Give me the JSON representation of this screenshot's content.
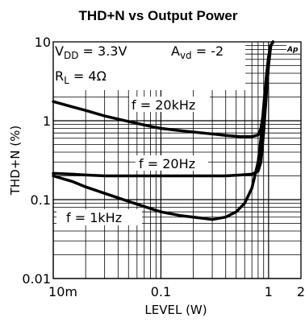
{
  "chart_data": {
    "type": "line",
    "title": "THD+N vs Output Power",
    "xlabel": "LEVEL (W)",
    "ylabel": "THD+N (%)",
    "xscale": "log",
    "yscale": "log",
    "xlim": [
      0.01,
      2
    ],
    "ylim": [
      0.01,
      10
    ],
    "grid": true,
    "xticks": [
      {
        "value": 0.01,
        "label": "10m"
      },
      {
        "value": 0.1,
        "label": "0.1"
      },
      {
        "value": 1,
        "label": "1"
      },
      {
        "value": 2,
        "label": "2"
      }
    ],
    "yticks": [
      {
        "value": 10,
        "label": "10"
      },
      {
        "value": 1,
        "label": "1"
      },
      {
        "value": 0.1,
        "label": "0.1"
      },
      {
        "value": 0.01,
        "label": "0.01"
      }
    ],
    "conditions": {
      "vdd_prefix": "V",
      "vdd_sub": "DD",
      "vdd_value": " = 3.3V",
      "avd_prefix": "A",
      "avd_sub": "vd",
      "avd_value": " = -2",
      "rl_prefix": "R",
      "rl_sub": "L",
      "rl_value": " = 4Ω"
    },
    "series": [
      {
        "name": "f = 20kHz",
        "x": [
          0.01,
          0.015,
          0.02,
          0.03,
          0.05,
          0.08,
          0.1,
          0.15,
          0.2,
          0.3,
          0.4,
          0.55,
          0.7,
          0.8,
          0.85,
          0.9,
          0.95,
          1.0,
          1.05,
          1.1
        ],
        "y": [
          1.75,
          1.5,
          1.35,
          1.15,
          0.98,
          0.85,
          0.8,
          0.75,
          0.72,
          0.68,
          0.65,
          0.63,
          0.63,
          0.66,
          0.8,
          1.3,
          2.8,
          6.0,
          9.0,
          10.0
        ]
      },
      {
        "name": "f = 20Hz",
        "x": [
          0.01,
          0.015,
          0.02,
          0.03,
          0.05,
          0.08,
          0.1,
          0.15,
          0.2,
          0.3,
          0.4,
          0.55,
          0.7,
          0.8,
          0.85,
          0.9,
          0.95,
          1.0,
          1.05,
          1.1
        ],
        "y": [
          0.215,
          0.21,
          0.205,
          0.2,
          0.2,
          0.2,
          0.2,
          0.2,
          0.2,
          0.2,
          0.2,
          0.205,
          0.21,
          0.23,
          0.3,
          0.7,
          2.0,
          5.0,
          9.0,
          10.0
        ]
      },
      {
        "name": "f = 1kHz",
        "x": [
          0.01,
          0.015,
          0.02,
          0.03,
          0.05,
          0.08,
          0.1,
          0.15,
          0.2,
          0.3,
          0.4,
          0.5,
          0.6,
          0.7,
          0.8,
          0.85,
          0.9,
          0.95,
          1.0,
          1.05,
          1.1
        ],
        "y": [
          0.2,
          0.17,
          0.145,
          0.12,
          0.095,
          0.077,
          0.07,
          0.063,
          0.06,
          0.056,
          0.06,
          0.07,
          0.09,
          0.14,
          0.3,
          0.6,
          1.5,
          3.5,
          6.5,
          9.0,
          10.0
        ]
      }
    ],
    "series_labels": [
      {
        "text": "f = 20kHz",
        "series": 0
      },
      {
        "text": "f = 20Hz",
        "series": 1
      },
      {
        "text": "f = 1kHz",
        "series": 2
      }
    ],
    "logo": "Ap",
    "line_color": "#000000"
  }
}
